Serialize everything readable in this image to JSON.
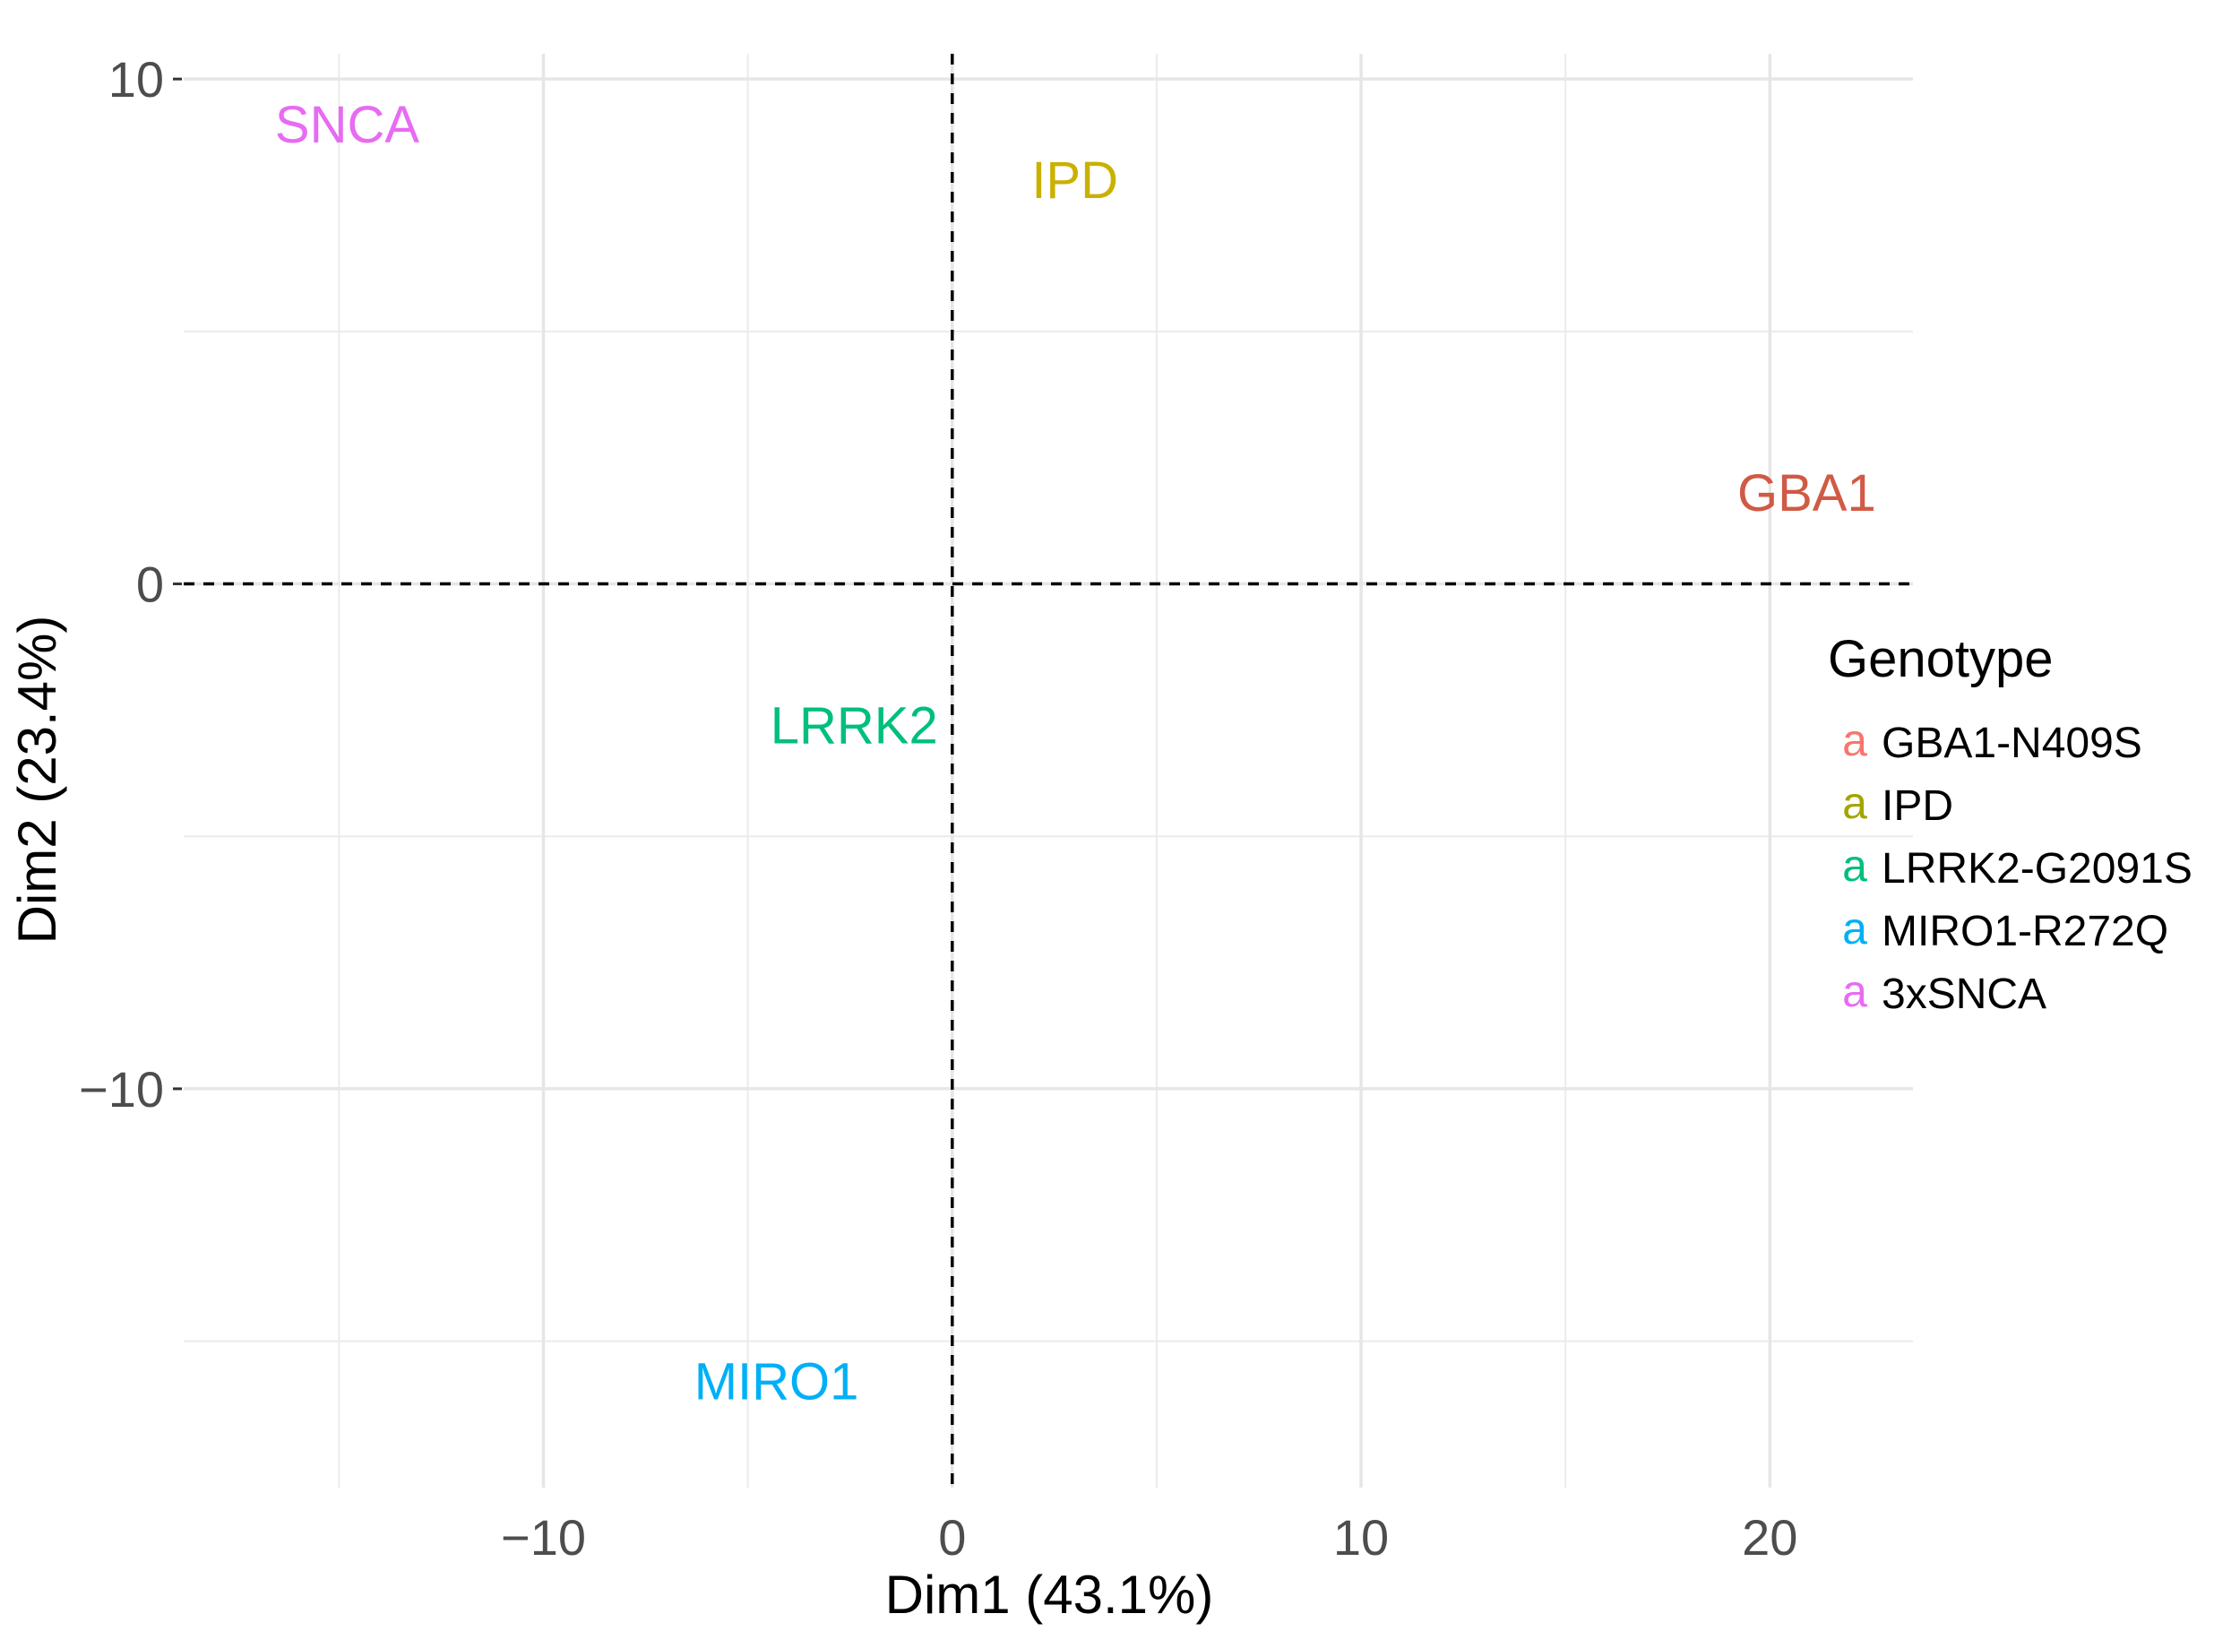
{
  "chart_data": {
    "type": "scatter",
    "xlabel": "Dim1 (43.1%)",
    "ylabel": "Dim2 (23.4%)",
    "xlim": [
      -18.8,
      23.5
    ],
    "ylim": [
      -17.9,
      10.5
    ],
    "xticks": [
      -10,
      0,
      10,
      20
    ],
    "yticks": [
      10,
      0,
      -10
    ],
    "xtick_labels": [
      "−10",
      "0",
      "10",
      "20"
    ],
    "ytick_labels": [
      "10",
      "0",
      "−10"
    ],
    "x_minor_grid": [
      -15,
      -5,
      5,
      15
    ],
    "y_minor_grid": [
      5,
      -5,
      -15
    ],
    "grid": true,
    "reference_lines": {
      "x": 0,
      "y": 0,
      "style": "dashed"
    },
    "points": [
      {
        "label": "SNCA",
        "x": -14.8,
        "y": 9.1,
        "color": "#e76bf3"
      },
      {
        "label": "IPD",
        "x": 3.0,
        "y": 8.0,
        "color": "#c9b100"
      },
      {
        "label": "GBA1",
        "x": 20.9,
        "y": 1.8,
        "color": "#d05a45"
      },
      {
        "label": "LRRK2",
        "x": -2.4,
        "y": -2.8,
        "color": "#00bf7d"
      },
      {
        "label": "MIRO1",
        "x": -4.3,
        "y": -15.8,
        "color": "#00b0f6"
      }
    ],
    "legend": {
      "title": "Genotype",
      "position": "right",
      "key_glyph": "a",
      "entries": [
        {
          "label": "GBA1-N409S",
          "color": "#f8766d"
        },
        {
          "label": "IPD",
          "color": "#a3a500"
        },
        {
          "label": "LRRK2-G2091S",
          "color": "#00bf7d"
        },
        {
          "label": "MIRO1-R272Q",
          "color": "#00b0f6"
        },
        {
          "label": "3xSNCA",
          "color": "#e76bf3"
        }
      ]
    }
  }
}
